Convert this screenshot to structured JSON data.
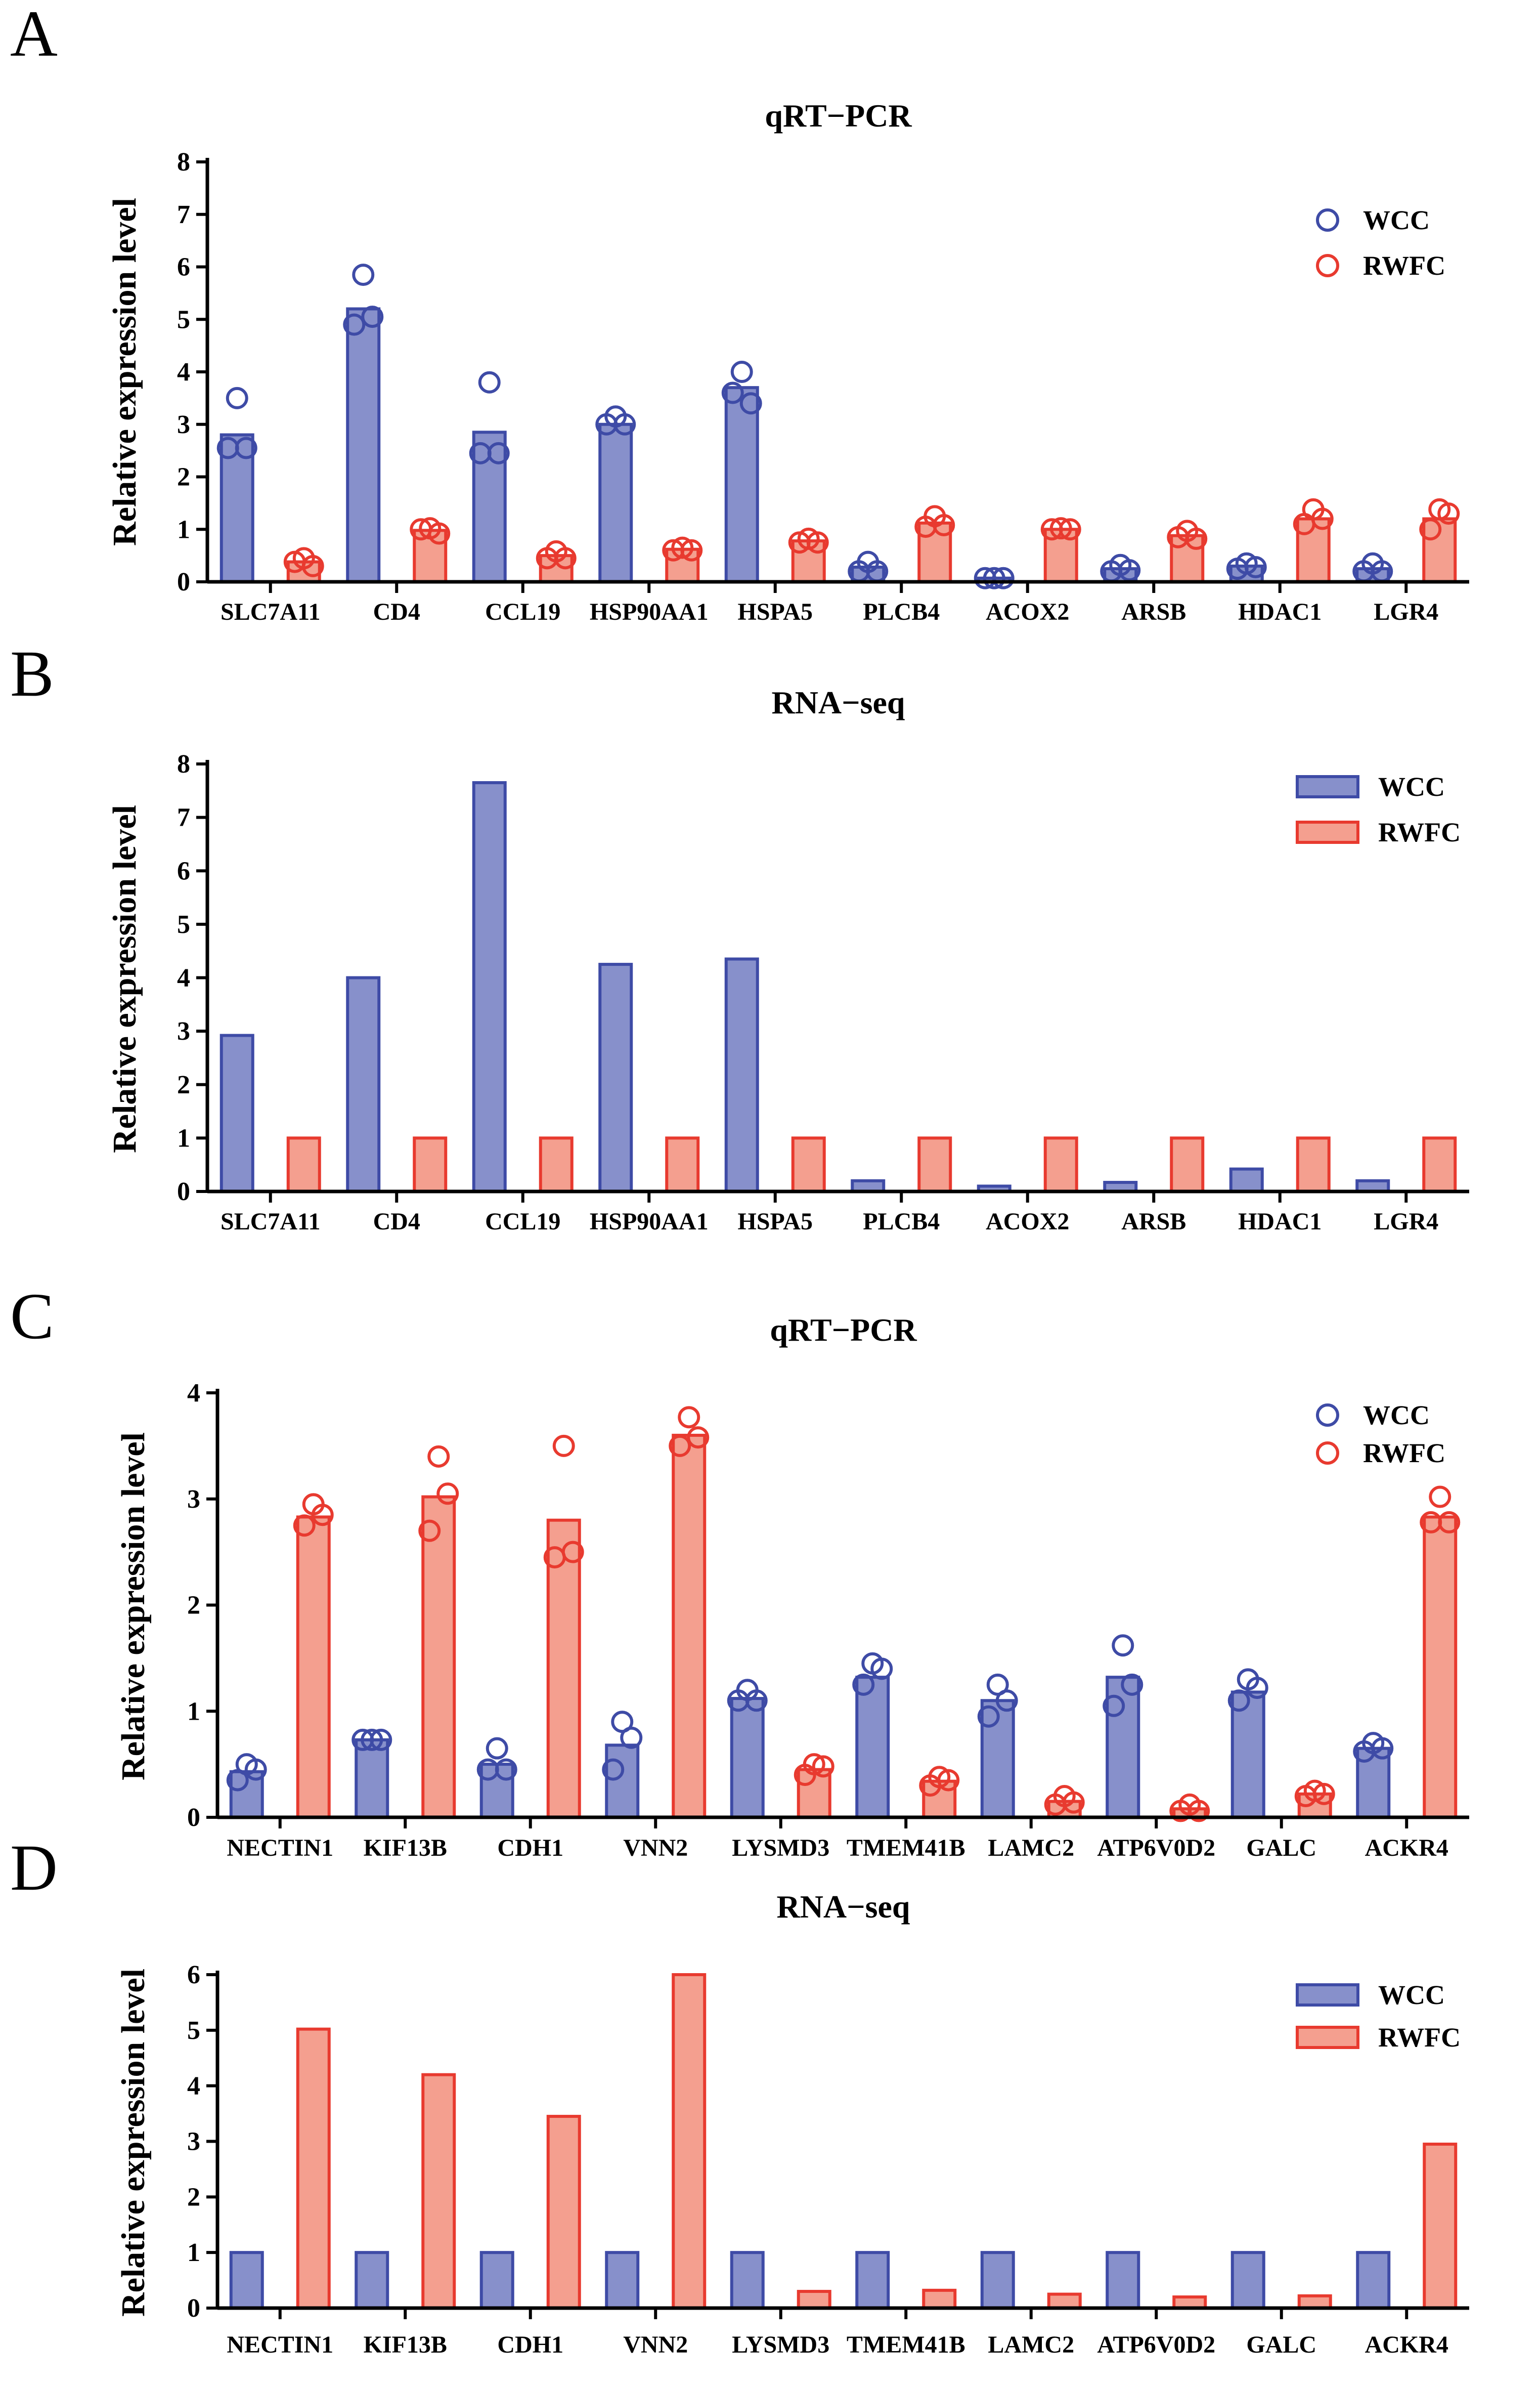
{
  "figure": {
    "colors": {
      "wcc_fill": "#8790CB",
      "wcc_edge": "#3E4BA6",
      "rwfc_fill": "#F49F8F",
      "rwfc_edge": "#E83A2F",
      "axis": "#000000"
    }
  },
  "chart_data": [
    {
      "panel": "A",
      "type": "bar",
      "points": "scatter",
      "title": "qRT−PCR",
      "ylabel": "Relative expression level",
      "xlabel": "",
      "ylim": [
        0,
        8
      ],
      "yticks": [
        0,
        1,
        2,
        3,
        4,
        5,
        6,
        7,
        8
      ],
      "legend": {
        "position": "top-right",
        "style": "circle"
      },
      "categories": [
        "SLC7A11",
        "CD4",
        "CCL19",
        "HSP90AA1",
        "HSPA5",
        "PLCB4",
        "ACOX2",
        "ARSB",
        "HDAC1",
        "LGR4"
      ],
      "series": [
        {
          "name": "WCC",
          "values": [
            2.8,
            5.2,
            2.85,
            3.0,
            3.7,
            0.28,
            0.07,
            0.25,
            0.3,
            0.25
          ],
          "points": [
            [
              3.5,
              2.55,
              2.55
            ],
            [
              5.85,
              4.9,
              5.05
            ],
            [
              3.8,
              2.45,
              2.45
            ],
            [
              3.15,
              3.0,
              3.0
            ],
            [
              4.0,
              3.6,
              3.4
            ],
            [
              0.38,
              0.2,
              0.2
            ],
            [
              0.07,
              0.07,
              0.07
            ],
            [
              0.32,
              0.2,
              0.22
            ],
            [
              0.35,
              0.25,
              0.28
            ],
            [
              0.35,
              0.2,
              0.2
            ]
          ]
        },
        {
          "name": "RWFC",
          "values": [
            0.38,
            0.98,
            0.5,
            0.62,
            0.78,
            1.12,
            1.0,
            0.88,
            1.2,
            1.2
          ],
          "points": [
            [
              0.45,
              0.38,
              0.3
            ],
            [
              1.02,
              1.0,
              0.92
            ],
            [
              0.58,
              0.45,
              0.45
            ],
            [
              0.65,
              0.6,
              0.6
            ],
            [
              0.82,
              0.75,
              0.75
            ],
            [
              1.25,
              1.05,
              1.08
            ],
            [
              1.02,
              1.0,
              1.0
            ],
            [
              0.97,
              0.85,
              0.82
            ],
            [
              1.38,
              1.1,
              1.2
            ],
            [
              1.38,
              1.0,
              1.3
            ]
          ]
        }
      ]
    },
    {
      "panel": "B",
      "type": "bar",
      "title": "RNA−seq",
      "ylabel": "Relative expression level",
      "xlabel": "",
      "ylim": [
        0,
        8
      ],
      "yticks": [
        0,
        1,
        2,
        3,
        4,
        5,
        6,
        7,
        8
      ],
      "legend": {
        "position": "top-right",
        "style": "bar"
      },
      "categories": [
        "SLC7A11",
        "CD4",
        "CCL19",
        "HSP90AA1",
        "HSPA5",
        "PLCB4",
        "ACOX2",
        "ARSB",
        "HDAC1",
        "LGR4"
      ],
      "series": [
        {
          "name": "WCC",
          "values": [
            2.92,
            4.0,
            7.65,
            4.25,
            4.35,
            0.2,
            0.1,
            0.17,
            0.42,
            0.2
          ]
        },
        {
          "name": "RWFC",
          "values": [
            1,
            1,
            1,
            1,
            1,
            1,
            1,
            1,
            1,
            1
          ]
        }
      ]
    },
    {
      "panel": "C",
      "type": "bar",
      "points": "scatter",
      "title": "qRT−PCR",
      "ylabel": "Relative expression level",
      "xlabel": "",
      "ylim": [
        0,
        4
      ],
      "yticks": [
        0,
        1,
        2,
        3,
        4
      ],
      "legend": {
        "position": "top-right",
        "style": "circle"
      },
      "categories": [
        "NECTIN1",
        "KIF13B",
        "CDH1",
        "VNN2",
        "LYSMD3",
        "TMEM41B",
        "LAMC2",
        "ATP6V0D2",
        "GALC",
        "ACKR4"
      ],
      "series": [
        {
          "name": "WCC",
          "values": [
            0.43,
            0.73,
            0.5,
            0.68,
            1.12,
            1.32,
            1.1,
            1.32,
            1.18,
            0.65
          ],
          "points": [
            [
              0.5,
              0.35,
              0.45
            ],
            [
              0.73,
              0.73,
              0.73
            ],
            [
              0.65,
              0.45,
              0.45
            ],
            [
              0.9,
              0.45,
              0.75
            ],
            [
              1.2,
              1.1,
              1.1
            ],
            [
              1.45,
              1.25,
              1.4
            ],
            [
              1.25,
              0.95,
              1.1
            ],
            [
              1.62,
              1.05,
              1.25
            ],
            [
              1.3,
              1.1,
              1.22
            ],
            [
              0.7,
              0.62,
              0.65
            ]
          ]
        },
        {
          "name": "RWFC",
          "values": [
            2.83,
            3.02,
            2.8,
            3.6,
            0.45,
            0.34,
            0.15,
            0.08,
            0.22,
            2.83
          ],
          "points": [
            [
              2.95,
              2.75,
              2.85
            ],
            [
              3.4,
              2.7,
              3.05
            ],
            [
              3.5,
              2.45,
              2.5
            ],
            [
              3.77,
              3.5,
              3.58
            ],
            [
              0.5,
              0.4,
              0.48
            ],
            [
              0.38,
              0.3,
              0.35
            ],
            [
              0.2,
              0.12,
              0.14
            ],
            [
              0.12,
              0.06,
              0.06
            ],
            [
              0.25,
              0.2,
              0.22
            ],
            [
              3.02,
              2.78,
              2.78
            ]
          ]
        }
      ]
    },
    {
      "panel": "D",
      "type": "bar",
      "title": "RNA−seq",
      "ylabel": "Relative expression level",
      "xlabel": "",
      "ylim": [
        0,
        6
      ],
      "yticks": [
        0,
        1,
        2,
        3,
        4,
        5,
        6
      ],
      "legend": {
        "position": "top-right",
        "style": "bar"
      },
      "categories": [
        "NECTIN1",
        "KIF13B",
        "CDH1",
        "VNN2",
        "LYSMD3",
        "TMEM41B",
        "LAMC2",
        "ATP6V0D2",
        "GALC",
        "ACKR4"
      ],
      "series": [
        {
          "name": "WCC",
          "values": [
            1,
            1,
            1,
            1,
            1,
            1,
            1,
            1,
            1,
            1
          ]
        },
        {
          "name": "RWFC",
          "values": [
            5.02,
            4.2,
            3.45,
            6.0,
            0.3,
            0.32,
            0.25,
            0.2,
            0.22,
            2.95
          ]
        }
      ]
    }
  ]
}
